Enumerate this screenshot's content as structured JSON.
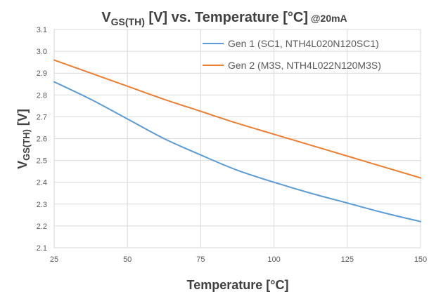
{
  "chart_data": {
    "type": "line",
    "title": {
      "main": "V",
      "sub": "GS(TH)",
      "rest": " [V] vs. Temperature [°C]",
      "suffix": " @20mA"
    },
    "xlabel": "Temperature [°C]",
    "ylabel": {
      "main": "V",
      "sub": "GS(TH)",
      "rest": " [V]"
    },
    "xlim": [
      25,
      150
    ],
    "ylim": [
      2.1,
      3.1
    ],
    "xticks": [
      25,
      50,
      75,
      100,
      125,
      150
    ],
    "xtick_labels": [
      "25",
      "50",
      "75",
      "100",
      "125",
      "150"
    ],
    "yticks": [
      2.1,
      2.2,
      2.3,
      2.4,
      2.5,
      2.6,
      2.7,
      2.8,
      2.9,
      3.0,
      3.1
    ],
    "ytick_labels": [
      "2.1",
      "2.2",
      "2.3",
      "2.4",
      "2.5",
      "2.6",
      "2.7",
      "2.8",
      "2.9",
      "3.0",
      "3.1"
    ],
    "grid": true,
    "legend_position": "top-right",
    "series": [
      {
        "name": "Gen 1 (SC1, NTH4L020N120SC1)",
        "color": "#5b9bd5",
        "x": [
          25,
          37.5,
          50,
          62.5,
          75,
          87.5,
          100,
          112.5,
          125,
          137.5,
          150
        ],
        "y": [
          2.86,
          2.78,
          2.69,
          2.6,
          2.525,
          2.455,
          2.4,
          2.35,
          2.305,
          2.26,
          2.22
        ]
      },
      {
        "name": "Gen 2 (M3S, NTH4L022N120M3S)",
        "color": "#ed7d31",
        "x": [
          25,
          37.5,
          50,
          62.5,
          75,
          87.5,
          100,
          112.5,
          125,
          137.5,
          150
        ],
        "y": [
          2.96,
          2.9,
          2.84,
          2.78,
          2.725,
          2.67,
          2.62,
          2.57,
          2.52,
          2.47,
          2.42
        ]
      }
    ]
  }
}
